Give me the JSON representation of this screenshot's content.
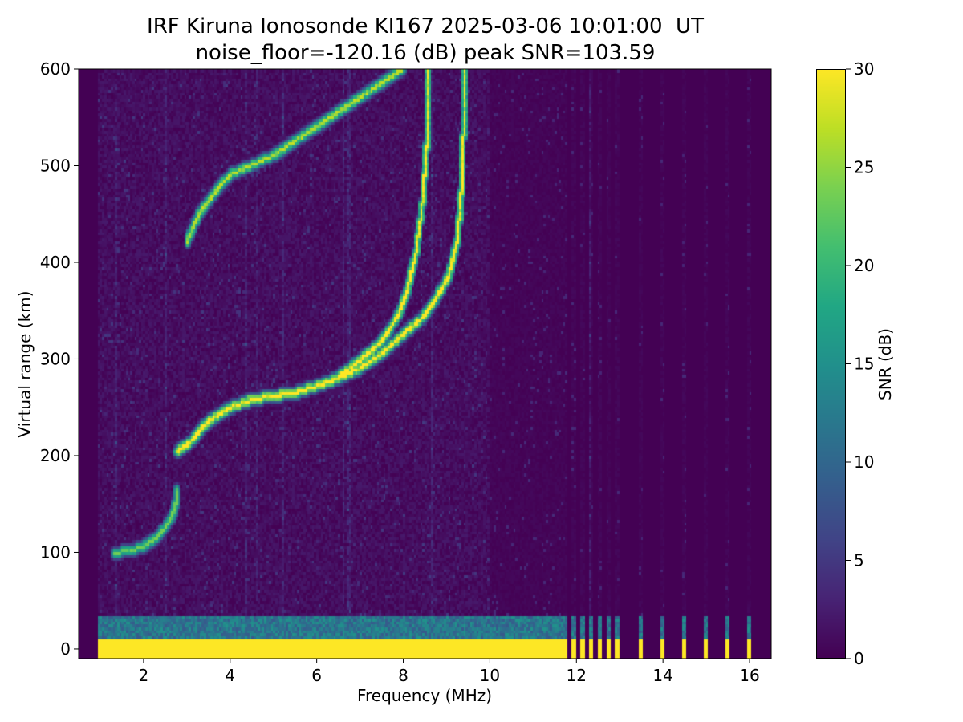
{
  "title": "IRF Kiruna Ionosonde KI167 2025-03-06 10:01:00  UT",
  "subtitle": "noise_floor=-120.16 (dB) peak SNR=103.59",
  "chart_data": {
    "type": "heatmap",
    "title": "IRF Kiruna Ionosonde KI167 2025-03-06 10:01:00  UT",
    "subtitle": "noise_floor=-120.16 (dB) peak SNR=103.59",
    "xlabel": "Frequency (MHz)",
    "ylabel": "Virtual range (km)",
    "xlim": [
      0.5,
      16.5
    ],
    "ylim": [
      -10,
      600
    ],
    "xticks": [
      2,
      4,
      6,
      8,
      10,
      12,
      14,
      16
    ],
    "yticks": [
      0,
      100,
      200,
      300,
      400,
      500,
      600
    ],
    "colorbar": {
      "label": "SNR (dB)",
      "range": [
        0,
        30
      ],
      "ticks": [
        0,
        5,
        10,
        15,
        20,
        25,
        30
      ],
      "colormap": "viridis"
    },
    "data_start_freq_mhz": 0.95,
    "ground_echo": {
      "range_km": [
        0,
        12
      ],
      "snr": 30,
      "freq_range_mhz": [
        0.95,
        11.7
      ]
    },
    "ground_echo_halo": {
      "range_km": [
        12,
        35
      ],
      "snr": 14
    },
    "discrete_frequencies_mhz": [
      11.75,
      11.95,
      12.15,
      12.35,
      12.55,
      12.75,
      12.95,
      13.5,
      14.0,
      14.5,
      15.0,
      15.5,
      16.0
    ],
    "traces": [
      {
        "name": "E layer",
        "snr": 22,
        "points": [
          [
            1.3,
            100
          ],
          [
            1.7,
            102
          ],
          [
            2.0,
            106
          ],
          [
            2.3,
            115
          ],
          [
            2.5,
            125
          ],
          [
            2.65,
            135
          ],
          [
            2.75,
            150
          ],
          [
            2.8,
            165
          ]
        ]
      },
      {
        "name": "F layer O-mode",
        "snr": 30,
        "points": [
          [
            2.8,
            205
          ],
          [
            3.1,
            215
          ],
          [
            3.5,
            235
          ],
          [
            4.0,
            250
          ],
          [
            4.5,
            258
          ],
          [
            5.0,
            262
          ],
          [
            5.5,
            265
          ],
          [
            6.0,
            272
          ],
          [
            6.5,
            280
          ],
          [
            7.0,
            290
          ],
          [
            7.5,
            305
          ],
          [
            8.0,
            325
          ],
          [
            8.5,
            345
          ],
          [
            8.8,
            365
          ],
          [
            9.05,
            385
          ],
          [
            9.25,
            420
          ],
          [
            9.35,
            470
          ],
          [
            9.4,
            530
          ],
          [
            9.42,
            600
          ]
        ]
      },
      {
        "name": "F layer X-mode",
        "snr": 30,
        "points": [
          [
            6.5,
            282
          ],
          [
            7.0,
            298
          ],
          [
            7.5,
            318
          ],
          [
            7.9,
            345
          ],
          [
            8.1,
            370
          ],
          [
            8.3,
            410
          ],
          [
            8.45,
            460
          ],
          [
            8.55,
            520
          ],
          [
            8.6,
            600
          ]
        ]
      },
      {
        "name": "F layer 2-hop",
        "snr": 25,
        "points": [
          [
            3.0,
            420
          ],
          [
            3.3,
            450
          ],
          [
            3.7,
            475
          ],
          [
            4.0,
            490
          ],
          [
            4.5,
            500
          ],
          [
            5.0,
            510
          ],
          [
            5.5,
            525
          ],
          [
            6.0,
            540
          ],
          [
            6.5,
            555
          ],
          [
            7.0,
            570
          ],
          [
            7.5,
            585
          ],
          [
            8.0,
            600
          ]
        ]
      }
    ]
  }
}
